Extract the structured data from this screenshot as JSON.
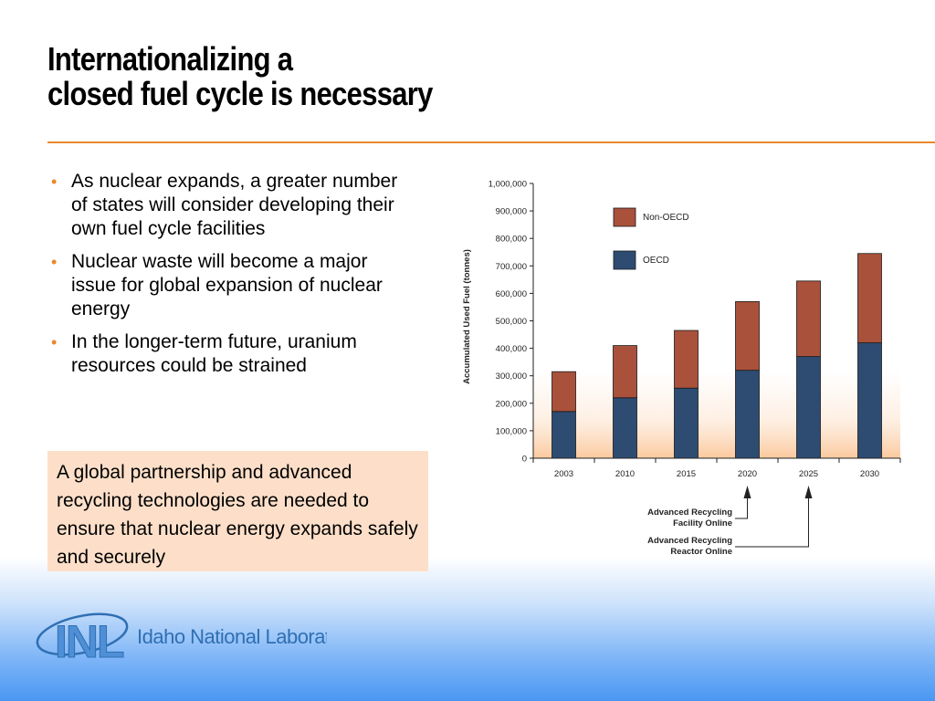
{
  "slide": {
    "title_line1": "Internationalizing a",
    "title_line2": "closed fuel cycle is necessary",
    "bullets": [
      "As nuclear expands, a greater number of states will consider developing their own fuel cycle facilities",
      "Nuclear waste will become a major issue for global expansion of nuclear energy",
      "In the longer-term future, uranium resources could be strained"
    ],
    "callout": "A global partnership and advanced recycling technologies are needed to ensure that nuclear energy expands safely and securely",
    "logo_mark": "INL",
    "logo_text": "Idaho National Laboratory"
  },
  "colors": {
    "accent": "#e8892c",
    "oecd": "#2e4c72",
    "non_oecd": "#a9513b",
    "callout_bg": "#fddfc9"
  },
  "chart_data": {
    "type": "bar",
    "stacked": true,
    "categories": [
      "2003",
      "2010",
      "2015",
      "2020",
      "2025",
      "2030"
    ],
    "series": [
      {
        "name": "OECD",
        "color": "#2e4c72",
        "values": [
          170000,
          220000,
          255000,
          320000,
          370000,
          420000
        ]
      },
      {
        "name": "Non-OECD",
        "color": "#a9513b",
        "values": [
          145000,
          190000,
          210000,
          250000,
          275000,
          325000
        ]
      }
    ],
    "ylabel": "Accumulated Used Fuel (tonnes)",
    "ylim": [
      0,
      1000000
    ],
    "yticks": [
      0,
      100000,
      200000,
      300000,
      400000,
      500000,
      600000,
      700000,
      800000,
      900000,
      1000000
    ],
    "ytick_labels": [
      "0",
      "100,000",
      "200,000",
      "300,000",
      "400,000",
      "500,000",
      "600,000",
      "700,000",
      "800,000",
      "900,000",
      "1,000,000"
    ],
    "legend_position": "top-left inside plot",
    "annotations": [
      {
        "text_line1": "Advanced Recycling",
        "text_line2": "Facility Online",
        "category": "2020"
      },
      {
        "text_line1": "Advanced Recycling",
        "text_line2": "Reactor Online",
        "category": "2025"
      }
    ]
  }
}
